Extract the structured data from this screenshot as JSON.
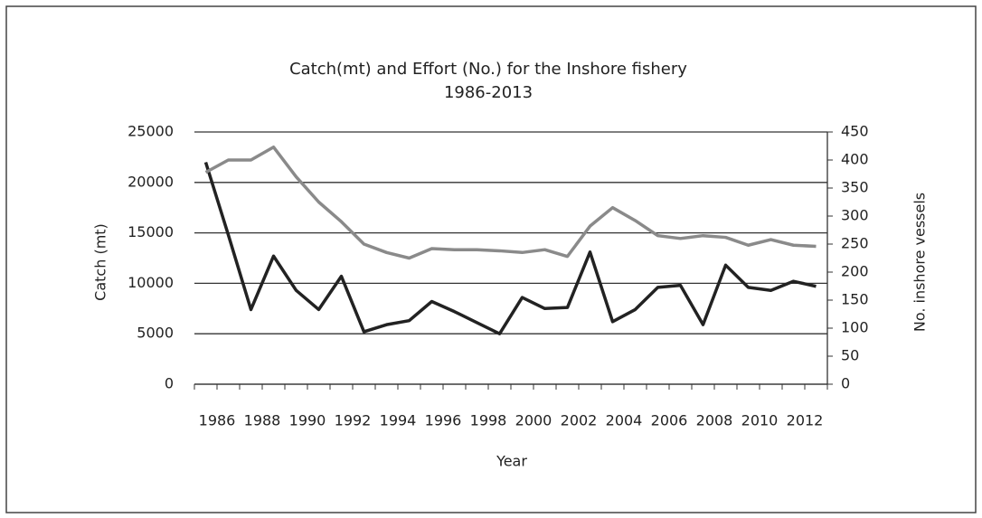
{
  "chart_data": {
    "type": "line",
    "title": [
      "Catch(mt) and Effort (No.) for the Inshore fishery",
      "1986-2013"
    ],
    "xlabel": "Year",
    "ylabel": "Catch (mt)",
    "y2label": "No. inshore vessels",
    "categories": [
      "1986",
      null,
      "1988",
      null,
      "1990",
      null,
      "1992",
      null,
      "1994",
      null,
      "1996",
      null,
      "1998",
      null,
      "2000",
      null,
      "2002",
      null,
      "2004",
      null,
      "2006",
      null,
      "2008",
      null,
      "2010",
      null,
      "2012",
      null
    ],
    "series": [
      {
        "name": "Catch",
        "color": "#222222",
        "axis": "y",
        "values": [
          22000,
          14800,
          7400,
          12700,
          9300,
          7400,
          10700,
          5200,
          5900,
          6300,
          8200,
          7200,
          6100,
          5000,
          8600,
          7500,
          7600,
          13100,
          6200,
          7400,
          9600,
          9800,
          5900,
          11800,
          9600,
          9300,
          10200,
          9700
        ]
      },
      {
        "name": "Vessels",
        "color": "#8a8a8a",
        "axis": "y2",
        "values": [
          378,
          400,
          400,
          423,
          370,
          325,
          290,
          250,
          235,
          225,
          242,
          240,
          240,
          238,
          235,
          240,
          228,
          282,
          315,
          292,
          265,
          260,
          265,
          262,
          248,
          258,
          248,
          246
        ]
      }
    ],
    "ylim": [
      0,
      25000
    ],
    "yticks": [
      0,
      5000,
      10000,
      15000,
      20000,
      25000
    ],
    "y2lim": [
      0,
      450
    ],
    "y2ticks": [
      0,
      50,
      100,
      150,
      200,
      250,
      300,
      350,
      400,
      450
    ],
    "grid": true
  }
}
